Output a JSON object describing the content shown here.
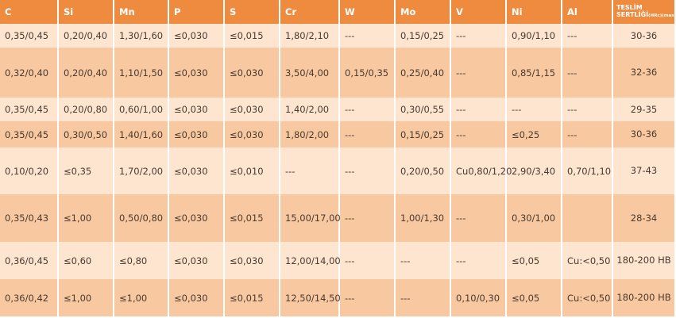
{
  "table": {
    "columns": [
      "C",
      "Si",
      "Mn",
      "P",
      "S",
      "Cr",
      "W",
      "Mo",
      "V",
      "Ni",
      "Al"
    ],
    "hardness_header": {
      "line1": "TESLİM",
      "line2": "SERTLİĞİ",
      "unit": "(HRc)(max)"
    },
    "rows": [
      [
        "0,35/0,45",
        "0,20/0,40",
        "1,30/1,60",
        "≤0,030",
        "≤0,015",
        "1,80/2,10",
        "---",
        "0,15/0,25",
        "---",
        "0,90/1,10",
        "---",
        "30-36"
      ],
      [
        "0,32/0,40",
        "0,20/0,40",
        "1,10/1,50",
        "≤0,030",
        "≤0,030",
        "3,50/4,00",
        "0,15/0,35",
        "0,25/0,40",
        "---",
        "0,85/1,15",
        "---",
        "32-36"
      ],
      [
        "0,35/0,45",
        "0,20/0,80",
        "0,60/1,00",
        "≤0,030",
        "≤0,030",
        "1,40/2,00",
        "---",
        "0,30/0,55",
        "---",
        "---",
        "---",
        "29-35"
      ],
      [
        "0,35/0,45",
        "0,30/0,50",
        "1,40/1,60",
        "≤0,030",
        "≤0,030",
        "1,80/2,00",
        "---",
        "0,15/0,25",
        "---",
        "≤0,25",
        "---",
        "30-36"
      ],
      [
        "0,10/0,20",
        "≤0,35",
        "1,70/2,00",
        "≤0,030",
        "≤0,010",
        "---",
        "---",
        "0,20/0,50",
        "Cu0,80/1,20",
        "2,90/3,40",
        "0,70/1,10",
        "37-43"
      ],
      [
        "0,35/0,43",
        "≤1,00",
        "0,50/0,80",
        "≤0,030",
        "≤0,015",
        "15,00/17,00",
        "---",
        "1,00/1,30",
        "---",
        "0,30/1,00",
        null,
        "28-34"
      ],
      [
        "0,36/0,45",
        "≤0,60",
        "≤0,80",
        "≤0,030",
        "≤0,030",
        "12,00/14,00",
        "---",
        "---",
        "---",
        "≤0,05",
        "Cu:<0,50",
        "180-200 HB"
      ],
      [
        "0,36/0,42",
        "≤1,00",
        "≤1,00",
        "≤0,030",
        "≤0,015",
        "12,50/14,50",
        "---",
        "---",
        "0,10/0,30",
        "≤0,05",
        "Cu:<0,50",
        "180-200 HB"
      ]
    ]
  }
}
